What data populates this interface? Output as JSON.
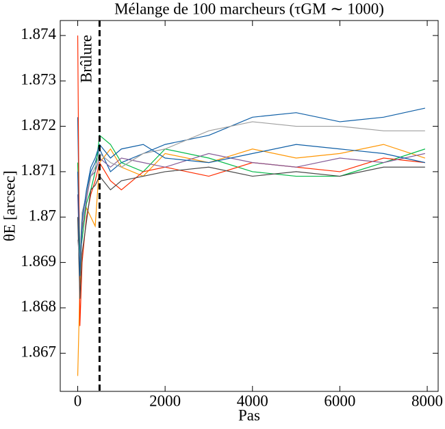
{
  "chart_data": {
    "type": "line",
    "title": "Mélange de 100 marcheurs (τGM ∼ 1000)",
    "x_label": "Pas",
    "y_label": "θE [arcsec]",
    "annotation": "Brûlure",
    "burn_in": 500,
    "x": [
      0,
      50,
      100,
      200,
      300,
      400,
      500,
      750,
      1000,
      1500,
      2000,
      3000,
      4000,
      5000,
      6000,
      7000,
      7950
    ],
    "series": [
      {
        "color": "#0C5DA5",
        "values": [
          1.8722,
          1.869,
          1.87,
          1.8705,
          1.871,
          1.8712,
          1.8715,
          1.871,
          1.8712,
          1.8714,
          1.8716,
          1.8718,
          1.8722,
          1.8723,
          1.8721,
          1.8722,
          1.8724
        ]
      },
      {
        "color": "#FF9500",
        "values": [
          1.8665,
          1.8685,
          1.8698,
          1.8702,
          1.87,
          1.8698,
          1.8712,
          1.8715,
          1.8711,
          1.8709,
          1.8714,
          1.8712,
          1.8715,
          1.8713,
          1.8714,
          1.8716,
          1.8713
        ]
      },
      {
        "color": "#00B945",
        "values": [
          1.8712,
          1.8692,
          1.8695,
          1.8703,
          1.8706,
          1.871,
          1.8718,
          1.8716,
          1.8712,
          1.871,
          1.8715,
          1.8713,
          1.871,
          1.8709,
          1.8709,
          1.8712,
          1.8715
        ]
      },
      {
        "color": "#FF2C00",
        "values": [
          1.874,
          1.8676,
          1.869,
          1.87,
          1.8705,
          1.8708,
          1.8712,
          1.8708,
          1.8706,
          1.871,
          1.8711,
          1.8709,
          1.8712,
          1.8711,
          1.871,
          1.8713,
          1.8712
        ]
      },
      {
        "color": "#845B97",
        "values": [
          1.8705,
          1.8688,
          1.8697,
          1.8704,
          1.8709,
          1.871,
          1.8713,
          1.8711,
          1.8713,
          1.8712,
          1.8711,
          1.8714,
          1.8712,
          1.8711,
          1.8713,
          1.8712,
          1.8714
        ]
      },
      {
        "color": "#474747",
        "values": [
          1.87,
          1.8682,
          1.8692,
          1.8699,
          1.8706,
          1.8707,
          1.8709,
          1.8706,
          1.8708,
          1.8709,
          1.871,
          1.8711,
          1.8709,
          1.871,
          1.8709,
          1.8711,
          1.8711
        ]
      },
      {
        "color": "#9E9E9E",
        "values": [
          1.8695,
          1.869,
          1.8701,
          1.8705,
          1.8709,
          1.8711,
          1.8714,
          1.8712,
          1.8711,
          1.8714,
          1.8715,
          1.8719,
          1.8721,
          1.872,
          1.872,
          1.8719,
          1.8719
        ]
      },
      {
        "color": "#0C5DA5",
        "values": [
          1.871,
          1.8687,
          1.8699,
          1.8706,
          1.8711,
          1.8713,
          1.8716,
          1.8713,
          1.8715,
          1.8716,
          1.8713,
          1.8712,
          1.8714,
          1.8716,
          1.8715,
          1.8714,
          1.8712
        ]
      }
    ],
    "xlim": [
      -400,
      8250
    ],
    "xticks": [
      0,
      2000,
      4000,
      6000,
      8000
    ],
    "ylim": [
      1.86616,
      1.87433
    ],
    "yticks": [
      1.867,
      1.868,
      1.869,
      1.87,
      1.871,
      1.872,
      1.873,
      1.874
    ]
  }
}
